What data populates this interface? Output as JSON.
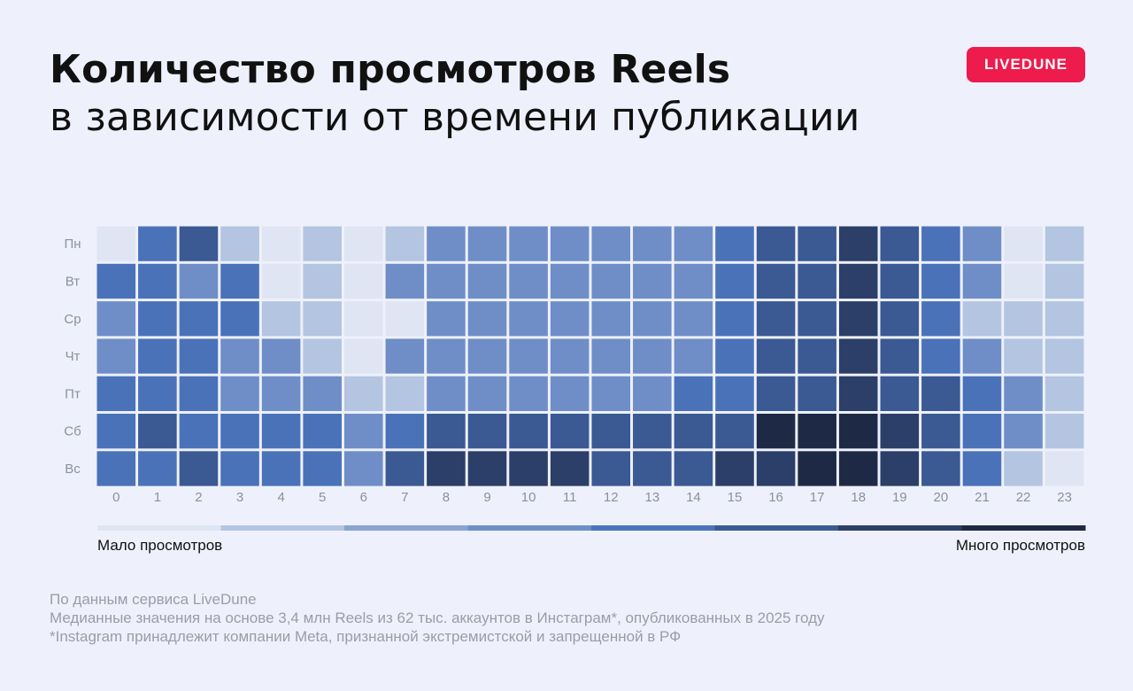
{
  "header": {
    "title_line1": "Количество просмотров Reels",
    "title_line2": "в зависимости от времени публикации"
  },
  "brand": {
    "name": "LIVEDUNE",
    "color": "#ee1b4d"
  },
  "legend": {
    "low_label": "Мало просмотров",
    "high_label": "Много просмотров",
    "gradient_colors": [
      "#dfe5f2",
      "#b4c5e1",
      "#8aa4d3",
      "#6f8ec7",
      "#4b73bd",
      "#3b5993",
      "#2b3f68",
      "#1e2a45"
    ]
  },
  "colors": {
    "palette": [
      "#dfe5f2",
      "#b4c5e1",
      "#6f8ec7",
      "#4a72b8",
      "#3b5993",
      "#2b3f68",
      "#1e2a45"
    ],
    "axis_text": "#8a90a0",
    "background": "#eef1fc"
  },
  "chart_data": {
    "type": "heatmap",
    "title": "Количество просмотров Reels в зависимости от времени публикации",
    "x_categories": [
      "0",
      "1",
      "2",
      "3",
      "4",
      "5",
      "6",
      "7",
      "8",
      "9",
      "10",
      "11",
      "12",
      "13",
      "14",
      "15",
      "16",
      "17",
      "18",
      "19",
      "20",
      "21",
      "22",
      "23"
    ],
    "y_categories": [
      "Пн",
      "Вт",
      "Ср",
      "Чт",
      "Пт",
      "Сб",
      "Вс"
    ],
    "value_scale": "0 = Мало просмотров … 6 = Много просмотров",
    "values": [
      [
        0,
        3,
        4,
        1,
        0,
        1,
        0,
        1,
        2,
        2,
        2,
        2,
        2,
        2,
        2,
        3,
        4,
        4,
        5,
        4,
        3,
        2,
        0,
        1
      ],
      [
        3,
        3,
        2,
        3,
        0,
        1,
        0,
        2,
        2,
        2,
        2,
        2,
        2,
        2,
        2,
        3,
        4,
        4,
        5,
        4,
        3,
        2,
        0,
        1
      ],
      [
        2,
        3,
        3,
        3,
        1,
        1,
        0,
        0,
        2,
        2,
        2,
        2,
        2,
        2,
        2,
        3,
        4,
        4,
        5,
        4,
        3,
        1,
        1,
        1
      ],
      [
        2,
        3,
        3,
        2,
        2,
        1,
        0,
        2,
        2,
        2,
        2,
        2,
        2,
        2,
        2,
        3,
        4,
        4,
        5,
        4,
        3,
        2,
        1,
        1
      ],
      [
        3,
        3,
        3,
        2,
        2,
        2,
        1,
        1,
        2,
        2,
        2,
        2,
        2,
        2,
        3,
        3,
        4,
        4,
        5,
        4,
        4,
        3,
        2,
        1
      ],
      [
        3,
        4,
        3,
        3,
        3,
        3,
        2,
        3,
        4,
        4,
        4,
        4,
        4,
        4,
        4,
        4,
        6,
        6,
        6,
        5,
        4,
        3,
        2,
        1
      ],
      [
        3,
        3,
        4,
        3,
        3,
        3,
        2,
        4,
        5,
        5,
        5,
        5,
        4,
        4,
        4,
        5,
        5,
        6,
        6,
        5,
        4,
        3,
        1,
        0
      ]
    ]
  },
  "footnotes": {
    "source": "По данным сервиса LiveDune",
    "method": "Медианные значения на основе 3,4 млн Reels из 62 тыс. аккаунтов в Инстаграм*, опубликованных в 2025 году",
    "disclaimer": "*Instagram принадлежит компании Meta, признанной экстремистской и запрещенной в РФ"
  }
}
